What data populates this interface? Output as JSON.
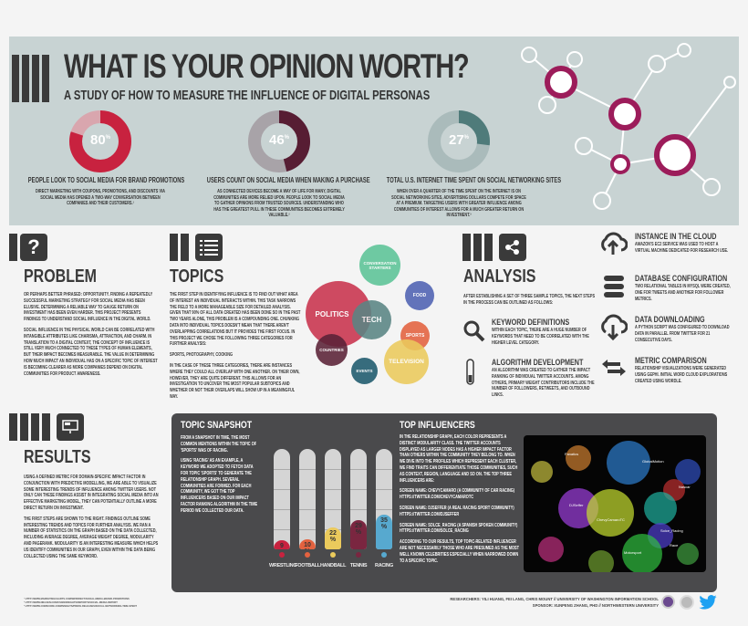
{
  "header": {
    "title": "WHAT IS YOUR OPINION WORTH?",
    "subtitle": "A STUDY OF HOW TO MEASURE THE INFLUENCE OF DIGITAL PERSONAS"
  },
  "stats": [
    {
      "value": "80",
      "unit": "%",
      "percent": 80,
      "color": "#c8223f",
      "track": "#d9a6ae",
      "caption": "PEOPLE LOOK TO SOCIAL MEDIA FOR BRAND PROMOTIONS",
      "desc": "DIRECT MARKETING WITH COUPONS, PROMOTIONS, AND DISCOUNTS VIA SOCIAL MEDIA HAS OPENED A TWO-WAY CONVERSATION BETWEEN COMPANIES AND THEIR CUSTOMERS.¹"
    },
    {
      "value": "46",
      "unit": "%",
      "percent": 46,
      "color": "#571d33",
      "track": "#a8a3a8",
      "caption": "USERS COUNT ON SOCIAL MEDIA WHEN MAKING A PURCHASE",
      "desc": "AS CONNECTED DEVICES BECOME A WAY OF LIFE FOR MANY, DIGITAL COMMUNITIES ARE MORE RELIED UPON. PEOPLE LOOK TO SOCIAL MEDIA TO GATHER OPINIONS FROM TRUSTED SOURCES. UNDERSTANDING WHO HAS THE GREATEST PULL IN THESE COMMUNITIES BECOMES EXTREMELY VALUABLE.²"
    },
    {
      "value": "27",
      "unit": "%",
      "percent": 27,
      "color": "#4f7b7a",
      "track": "#aabbbb",
      "caption": "TOTAL U.S. INTERNET TIME SPENT ON SOCIAL NETWORKING SITES",
      "desc": "WHEN OVER A QUARTER OF THE TIME SPENT ON THE INTERNET IS ON SOCIAL NETWORKING SITES, ADVERTISING DOLLARS COMPETE FOR SPACE AT A PREMIUM. TARGETING USERS WITH GREATER INFLUENCE AMONG COMMUNITIES OF INTEREST ALLOWS FOR A MUCH GREATER RETURN ON INVESTMENT.³"
    }
  ],
  "problem": {
    "icon": "?",
    "title": "PROBLEM",
    "p1": "OR PERHAPS BETTER PHRASED: OPPORTUNITY. FINDING A REPEATEDLY SUCCESSFUL MARKETING STRATEGY FOR SOCIAL MEDIA HAS BEEN ELUSIVE. DETERMINING A RELIABLE WAY TO GAUGE RETURN ON INVESTMENT HAS BEEN EVEN HARDER. THIS PROJECT PRESENTS FINDINGS TO UNDERSTAND SOCIAL INFLUENCE IN THE DIGITAL WORLD.",
    "p2": "SOCIAL INFLUENCE IN THE PHYSICAL WORLD CAN BE CORRELATED WITH INTANGIBLE ATTRIBUTES LIKE CHARISMA, ATTRACTION, AND CHARM. IN TRANSLATION TO A DIGITAL CONTEXT, THE CONCEPT OF INFLUENCE IS STILL VERY MUCH CONNECTED TO THESE TYPES OF HUMAN ELEMENTS, BUT THEIR IMPACT BECOMES MEASURABLE. THE VALUE IN DETERMINING HOW MUCH IMPACT AN INDIVIDUAL HAS ON A SPECIFIC TOPIC OF INTEREST IS BECOMING CLEARER AS MORE COMPANIES DEPEND ON DIGITAL COMMUNITIES FOR PRODUCT AWARENESS."
  },
  "topics": {
    "title": "TOPICS",
    "p1": "THE FIRST STEP IN IDENTIFYING INFLUENCE IS TO FIND OUT WHAT AREA OF INTEREST AN INDIVIDUAL INTERACTS WITHIN. THIS TASK NARROWS THE FIELD TO A MORE MANAGEABLE SIZE FOR DETAILED ANALYSIS. GIVEN THAT 90% OF ALL DATA CREATED HAS BEEN DONE SO IN THE PAST TWO YEARS ALONE, THIS PROBLEM IS A COMPOUNDING ONE. CHUNKING DATA INTO INDIVIDUAL TOPICS DOESN'T MEAN THAT THERE AREN'T OVERLAPPING CORRELATIONS BUT IT PROVIDES THE FIRST FOCUS. IN THIS PROJECT WE CHOSE THE FOLLOWING THREE CATEGORIES FOR FURTHER ANALYSIS:",
    "list": "SPORTS, PHOTOGRAPHY, COOKING",
    "p2": "IN THE CASE OF THESE THREE CATEGORIES, THERE ARE INSTANCES WHERE THEY COULD ALL OVERLAP WITH ONE ANOTHER. ON THEIR OWN, HOWEVER, THEY ARE QUITE DIFFERENT. THIS ALLOWS FOR AN INVESTIGATION TO UNCOVER THE MOST POPULAR SUBTOPICS AND WHETHER OR NOT THEIR OVERLAPS WILL SHOW UP IN A MEANINGFUL WAY.",
    "bubbles": [
      {
        "label": "CONVERSATION STARTERS",
        "color": "#5cc497"
      },
      {
        "label": "FOOD",
        "color": "#4e62b3"
      },
      {
        "label": "POLITICS",
        "color": "#c9334d"
      },
      {
        "label": "TECH",
        "color": "#5a8584"
      },
      {
        "label": "SPORTS",
        "color": "#e3623f"
      },
      {
        "label": "COUNTRIES",
        "color": "#5b2237"
      },
      {
        "label": "TELEVISION",
        "color": "#ebca5c"
      },
      {
        "label": "EVENTS",
        "color": "#1e5a6d"
      }
    ]
  },
  "analysis": {
    "title": "ANALYSIS",
    "intro": "AFTER ESTABLISHING A SET OF THREE SAMPLE TOPICS, THE NEXT STEPS IN THE PROCESS CAN BE OUTLINED AS FOLLOWS:",
    "steps": [
      {
        "title": "KEYWORD DEFINITIONS",
        "text": "WITHIN EACH TOPIC, THERE ARE A HUGE NUMBER OF KEYWORDS THAT NEED TO BE CORRELATED WITH THE HIGHER LEVEL CATEGORY."
      },
      {
        "title": "ALGORITHM DEVELOPMENT",
        "text": "AN ALGORITHM WAS CREATED TO GATHER THE IMPACT RANKING OF INDIVIDUAL TWITTER ACCOUNTS. AMONG OTHERS, PRIMARY WEIGHT CONTRIBUTORS INCLUDE THE NUMBER OF FOLLOWERS, RETWEETS, AND OUTBOUND LINKS."
      }
    ],
    "infra": [
      {
        "title": "INSTANCE IN THE CLOUD",
        "text": "AMAZON'S EC2 SERVICE WAS USED TO HOST A VIRTUAL MACHINE DEDICATED FOR RESEARCH USE."
      },
      {
        "title": "DATABASE CONFIGURATION",
        "text": "TWO RELATIONAL TABLES IN MYSQL WERE CREATED, ONE FOR TWEETS AND ANOTHER FOR FOLLOWER METRICS."
      },
      {
        "title": "DATA DOWNLOADING",
        "text": "A PYTHON SCRIPT WAS CONFIGURED TO DOWNLOAD DATA IN PARALLEL FROM TWITTER FOR 21 CONSECUTIVE DAYS."
      },
      {
        "title": "METRIC COMPARISON",
        "text": "RELATIONSHIP VISUALIZATIONS WERE GENERATED USING GEPHI. INITIAL WORD CLOUD EXPLORATIONS CREATED USING WORDLE."
      }
    ]
  },
  "results": {
    "title": "RESULTS",
    "p1": "USING A DEFINED METRIC FOR DOMAIN-SPECIFIC IMPACT FACTOR IN CONJUNCTION WITH PREDICTIVE MODELLING, WE ARE ABLE TO VISUALIZE SOME INTERESTING TRENDS OF INFLUENCE AMONG TWITTER USERS. NOT ONLY CAN THESE FINDINGS ASSIST IN INTEGRATING SOCIAL MEDIA INTO AN EFFECTIVE MARKETING MODEL, THEY CAN POTENTIALLY OUTLINE A MORE DIRECT RETURN ON INVESTMENT.",
    "p2": "THE FIRST STEPS ARE SHOWN TO THE RIGHT. FINDINGS OUTLINE SOME INTERESTING TRENDS AND TOPICS FOR FURTHER ANALYSIS. WE RAN A NUMBER OF STATISTICS ON THE GRAPH BASED ON THE DATA COLLECTED, INCLUDING AVERAGE DEGREE, AVERAGE WEIGHT DEGREE, MODULARITY AND PAGERANK. MODULARITY IS AN INTERESTING MEASURE WHICH HELPS US IDENTIFY COMMUNITIES IN OUR GRAPH, EVEN WITHIN THE DATA BEING COLLECTED USING THE SAME KEYWORD."
  },
  "snapshot": {
    "title": "TOPIC SNAPSHOT",
    "p1": "FROM A SNAPSHOT IN TIME, THE MOST COMMON MENTIONS WITHIN THE TOPIC OF 'SPORTS' WAS OF RACING.",
    "p2": "USING 'RACING' AS AN EXAMPLE, A KEYWORD WE ADOPTED TO FETCH DATA FOR TOPIC 'SPORTS' TO GENERATE THE RELATIONSHIP GRAPH. SEVERAL COMMUNITIES ARE FORMED. FOR EACH COMMUNITY, WE GOT THE TOP INFLUENCERS BASED ON OUR IMPACT FACTOR RANKING ALGORITHM IN THE TIME PERIOD WE COLLECTED OUR DATA."
  },
  "chart_data": {
    "type": "bar",
    "title": "TOPIC SNAPSHOT",
    "categories": [
      "WRESTLING",
      "FOOTBALL",
      "HANDBALL",
      "TENNIS",
      "RACING"
    ],
    "values": [
      9,
      10,
      22,
      29,
      35
    ],
    "labels": [
      "9",
      "10",
      "22",
      "29",
      "35"
    ],
    "unit": "%",
    "colors": [
      "#c8223f",
      "#e3623f",
      "#ebca5c",
      "#7a2640",
      "#57a9cf"
    ],
    "ylim": [
      0,
      100
    ]
  },
  "influencers": {
    "title": "TOP INFLUENCERS",
    "p1": "IN THE RELATIONSHIP GRAPH, EACH COLOR REPRESENTS A DISTINCT MODULARITY CLASS. THE TWITTER ACCOUNTS DISPLAYED AS LARGER NODES HAS A HIGHER IMPACT FACTOR THAN OTHERS WITHIN THE COMMUNITY THEY BELONG TO. WHEN WE DIVE INTO THE PROFILES WHICH REPRESENT EACH CLUSTER, WE FIND TRAITS CAN DIFFERENTIATE THOSE COMMUNITIES, SUCH AS CONTEXT, REGION, LANGUAGE AND SO ON. THE TOP THREE INFLUENCERS ARE:",
    "list": [
      {
        "name": "SCREEN NAME: CHEVYCAMARO (A COMMUNITY OF CAR RACING)",
        "url": "HTTPS://TWITTER.COM/CHEVYCAMAROTC"
      },
      {
        "name": "SCREEN NAME: DJSEFFER (A REAL RACING SPORT COMMUNITY)",
        "url": "HTTPS://TWITTER.COM/DJSEFFER"
      },
      {
        "name": "SCREEN NAME: SOLCE_RACING (A SPANISH SPOKEN COMMUNITY)",
        "url": "HTTPS://TWITTER.COM/SOLCE_RACING"
      }
    ],
    "p2": "ACCORDING TO OUR RESULTS, TOP TOPIC-RELATED INFLUENCER ARE NOT NECESSARILY THOSE WHO ARE PRESUMED AS THE MOST WELL KNOWN CELEBRITIES ESPECIALLY WHEN NARROWED DOWN TO A SPECIFIC TOPIC.",
    "graph_labels": [
      "ChevyCamaroTC",
      "DJSeffer",
      "Solce_Racing",
      "GlobalMotion",
      "Fanatics",
      "Nascar",
      "Motorsport",
      "Race"
    ]
  },
  "footer": {
    "researchers": "RESEARCHERS: YILI HUANG, FEI LANG, CHRIS MOUNT // UNIVERSITY OF WASHINGTON INFORMATION SCHOOL",
    "sponsor": "SPONSOR: XUNPENG ZHANG, PHD // NORTHWESTERN UNIVERSITY",
    "notes": [
      "¹ HTTP://WWW.MARKETINGCHARTS.COM/WP/DIRECT/SOCIAL-MEDIA-BRAND-PROMOTIONS",
      "² HTTP://WWW.NIELSEN.COM/US/EN/INSIGHTS/REPORTS/SOCIAL-MEDIA-REPORT",
      "³ HTTP://WWW.COMSCORE.COM/INSIGHTS/PRESS-RELEASES/SOCIAL-NETWORKING-TIME-SPENT"
    ]
  }
}
